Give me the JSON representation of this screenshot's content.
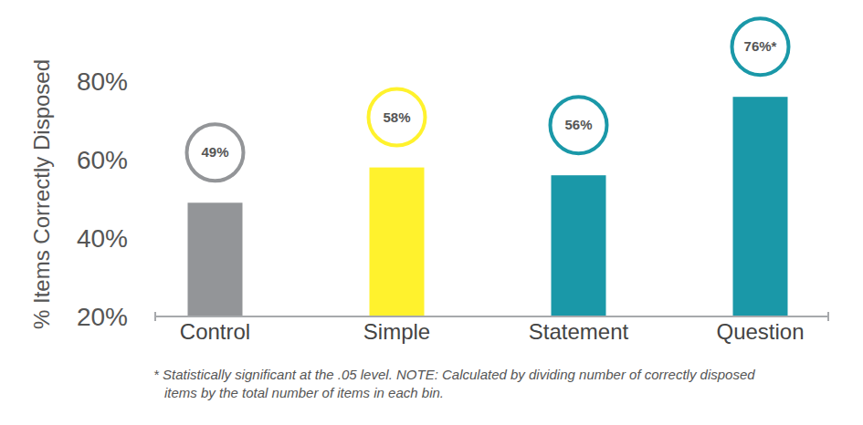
{
  "chart_data": {
    "type": "bar",
    "ylabel": "% Items Correctly Disposed",
    "categories": [
      "Control",
      "Simple",
      "Statement",
      "Question"
    ],
    "values": [
      49,
      58,
      56,
      76
    ],
    "value_labels": [
      "49%",
      "58%",
      "56%",
      "76%*"
    ],
    "colors": [
      "#939598",
      "#fff22d",
      "#1a98a8",
      "#1a98a8"
    ],
    "ylim": [
      20,
      80
    ],
    "yticks": [
      {
        "value": 20,
        "label": "20%"
      },
      {
        "value": 40,
        "label": "40%"
      },
      {
        "value": 60,
        "label": "60%"
      },
      {
        "value": 80,
        "label": "80%"
      }
    ],
    "grid": false,
    "data_labels": true,
    "annotations": [
      "* Statistically significant at the .05 level. NOTE: Calculated by dividing number of correctly disposed",
      "items by the total number of items in each bin."
    ]
  }
}
